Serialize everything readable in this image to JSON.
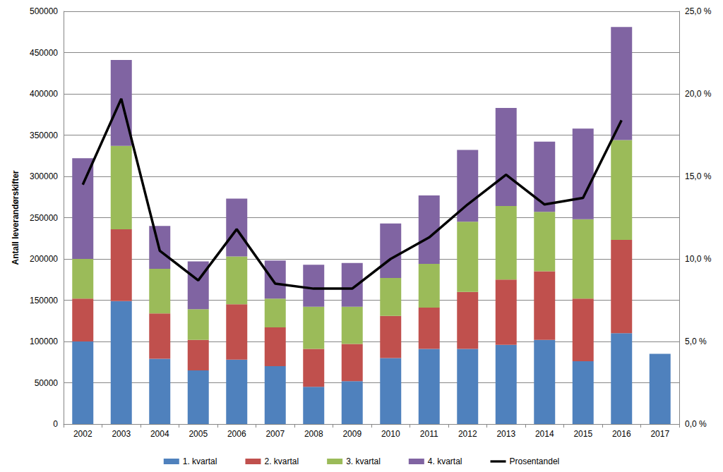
{
  "chart_data": {
    "type": "bar",
    "stacked": true,
    "grid": true,
    "legend": "bottom",
    "y_label": "Antall leverandørskifter",
    "categories": [
      "2002",
      "2003",
      "2004",
      "2005",
      "2006",
      "2007",
      "2008",
      "2009",
      "2010",
      "2011",
      "2012",
      "2013",
      "2014",
      "2015",
      "2016",
      "2017"
    ],
    "ylim": [
      0,
      500000
    ],
    "yticks": [
      0,
      50000,
      100000,
      150000,
      200000,
      250000,
      300000,
      350000,
      400000,
      450000,
      500000
    ],
    "y2lim": [
      0,
      25
    ],
    "y2ticks": [
      {
        "value": 0,
        "label": "0,0 %"
      },
      {
        "value": 5,
        "label": "5,0 %"
      },
      {
        "value": 10,
        "label": "10,0 %"
      },
      {
        "value": 15,
        "label": "15,0 %"
      },
      {
        "value": 20,
        "label": "20,0 %"
      },
      {
        "value": 25,
        "label": "25,0 %"
      }
    ],
    "series": [
      {
        "name": "1. kvartal",
        "type": "bar",
        "color": "#4F81BD",
        "values": [
          100000,
          149000,
          79000,
          65000,
          78000,
          70000,
          45000,
          52000,
          80000,
          91000,
          91000,
          96000,
          102000,
          76000,
          110000,
          85000
        ]
      },
      {
        "name": "2. kvartal",
        "type": "bar",
        "color": "#C0504D",
        "values": [
          52000,
          87000,
          55000,
          37000,
          67000,
          47000,
          46000,
          45000,
          51000,
          50000,
          69000,
          79000,
          83000,
          76000,
          113000,
          null
        ]
      },
      {
        "name": "3. kvartal",
        "type": "bar",
        "color": "#9BBB59",
        "values": [
          48000,
          101000,
          54000,
          37000,
          58000,
          35000,
          51000,
          45000,
          46000,
          53000,
          85000,
          89000,
          72000,
          96000,
          121000,
          null
        ]
      },
      {
        "name": "4. kvartal",
        "type": "bar",
        "color": "#8064A2",
        "values": [
          122000,
          104000,
          52000,
          58000,
          70000,
          46000,
          51000,
          53000,
          66000,
          83000,
          87000,
          119000,
          85000,
          110000,
          137000,
          null
        ]
      },
      {
        "name": "Prosentandel",
        "type": "line",
        "axis": "y2",
        "color": "#000000",
        "values": [
          14.5,
          19.7,
          10.5,
          8.7,
          11.8,
          8.5,
          8.2,
          8.2,
          10.0,
          11.3,
          13.3,
          15.1,
          13.3,
          13.7,
          18.4,
          null
        ]
      }
    ]
  }
}
